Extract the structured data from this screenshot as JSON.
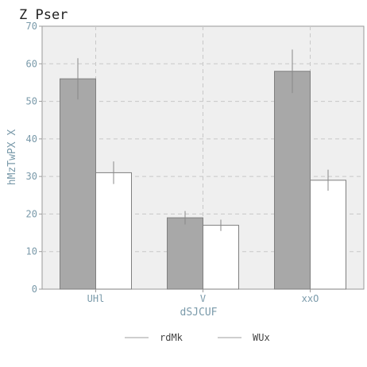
{
  "chart_data": {
    "type": "bar",
    "title": "Z Pser",
    "xlabel": "dSJCUF",
    "ylabel": "hMzTwPX X",
    "categories": [
      "UHl",
      "V",
      "xxO"
    ],
    "series": [
      {
        "name": "rdMk",
        "values": [
          56,
          19,
          58
        ],
        "error": [
          5.5,
          1.8,
          5.8
        ],
        "color": "#a8a8a8"
      },
      {
        "name": "WUx",
        "values": [
          31,
          17,
          29
        ],
        "error": [
          3.0,
          1.5,
          2.8
        ],
        "color": "#ffffff"
      }
    ],
    "ylim": [
      0,
      70
    ],
    "yticks": [
      0,
      10,
      20,
      30,
      40,
      50,
      60,
      70
    ],
    "grid": true,
    "legend_position": "bottom-center"
  }
}
